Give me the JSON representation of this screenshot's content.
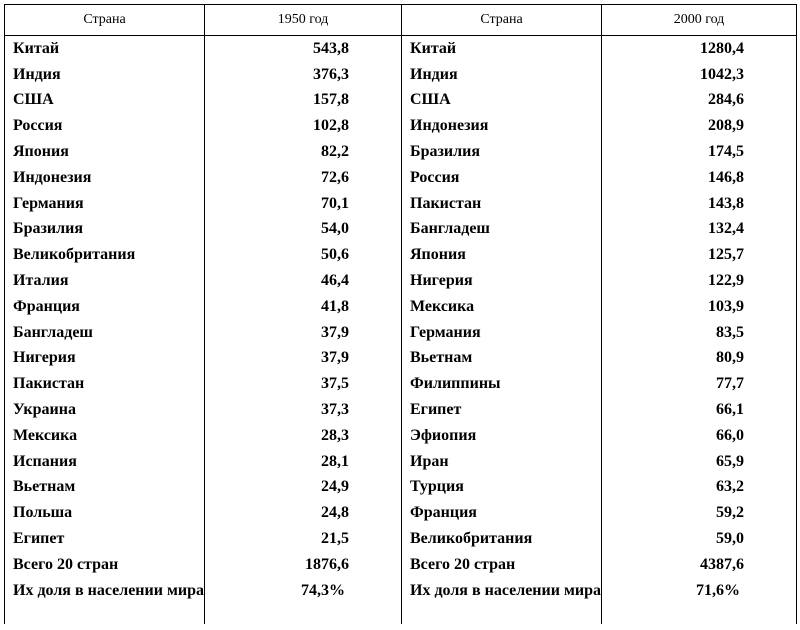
{
  "table": {
    "headers": [
      "Страна",
      "1950 год",
      "Страна",
      "2000 год"
    ],
    "rows": [
      {
        "country_1950": "Китай",
        "value_1950": "543,8",
        "country_2000": "Китай",
        "value_2000": "1280,4"
      },
      {
        "country_1950": "Индия",
        "value_1950": "376,3",
        "country_2000": "Индия",
        "value_2000": "1042,3"
      },
      {
        "country_1950": "США",
        "value_1950": "157,8",
        "country_2000": "США",
        "value_2000": "284,6"
      },
      {
        "country_1950": "Россия",
        "value_1950": "102,8",
        "country_2000": "Индонезия",
        "value_2000": "208,9"
      },
      {
        "country_1950": "Япония",
        "value_1950": "82,2",
        "country_2000": "Бразилия",
        "value_2000": "174,5"
      },
      {
        "country_1950": "Индонезия",
        "value_1950": "72,6",
        "country_2000": "Россия",
        "value_2000": "146,8"
      },
      {
        "country_1950": "Германия",
        "value_1950": "70,1",
        "country_2000": "Пакистан",
        "value_2000": "143,8"
      },
      {
        "country_1950": "Бразилия",
        "value_1950": "54,0",
        "country_2000": "Бангладеш",
        "value_2000": "132,4"
      },
      {
        "country_1950": "Великобритания",
        "value_1950": "50,6",
        "country_2000": "Япония",
        "value_2000": "125,7"
      },
      {
        "country_1950": "Италия",
        "value_1950": "46,4",
        "country_2000": "Нигерия",
        "value_2000": "122,9"
      },
      {
        "country_1950": "Франция",
        "value_1950": "41,8",
        "country_2000": "Мексика",
        "value_2000": "103,9"
      },
      {
        "country_1950": "Бангладеш",
        "value_1950": "37,9",
        "country_2000": "Германия",
        "value_2000": "83,5"
      },
      {
        "country_1950": "Нигерия",
        "value_1950": "37,9",
        "country_2000": "Вьетнам",
        "value_2000": "80,9"
      },
      {
        "country_1950": "Пакистан",
        "value_1950": "37,5",
        "country_2000": "Филиппины",
        "value_2000": "77,7"
      },
      {
        "country_1950": "Украина",
        "value_1950": "37,3",
        "country_2000": "Египет",
        "value_2000": "66,1"
      },
      {
        "country_1950": "Мексика",
        "value_1950": "28,3",
        "country_2000": "Эфиопия",
        "value_2000": "66,0"
      },
      {
        "country_1950": "Испания",
        "value_1950": "28,1",
        "country_2000": "Иран",
        "value_2000": "65,9"
      },
      {
        "country_1950": "Вьетнам",
        "value_1950": "24,9",
        "country_2000": "Турция",
        "value_2000": "63,2"
      },
      {
        "country_1950": "Польша",
        "value_1950": "24,8",
        "country_2000": "Франция",
        "value_2000": "59,2"
      },
      {
        "country_1950": "Египет",
        "value_1950": "21,5",
        "country_2000": "Великобритания",
        "value_2000": "59,0"
      },
      {
        "country_1950": "Всего 20 стран",
        "value_1950": "1876,6",
        "country_2000": "Всего 20 стран",
        "value_2000": "4387,6"
      }
    ],
    "share_row": {
      "label_1950": "Их доля в населении мира",
      "value_1950": "74,3%",
      "label_2000": "Их доля в населении мира",
      "value_2000": "71,6%"
    }
  }
}
